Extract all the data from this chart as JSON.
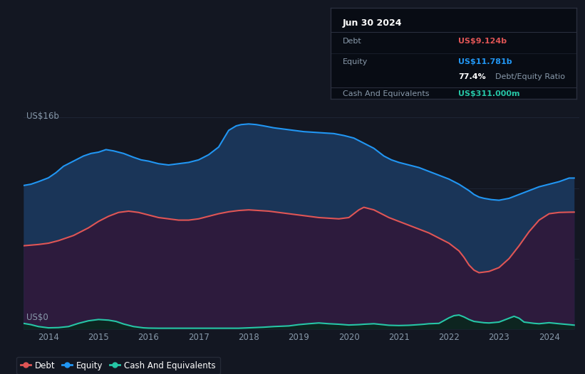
{
  "background_color": "#131722",
  "plot_bg_color": "#131722",
  "y_label_top": "US$16b",
  "y_label_bottom": "US$0",
  "x_ticks": [
    "2014",
    "2015",
    "2016",
    "2017",
    "2018",
    "2019",
    "2020",
    "2021",
    "2022",
    "2023",
    "2024"
  ],
  "debt_color": "#e05555",
  "equity_color": "#2196f3",
  "cash_color": "#26c6a6",
  "fill_equity_color": "#1a3558",
  "fill_debt_color": "#2d1b3d",
  "fill_cash_color": "#0d2520",
  "tooltip_bg": "#080c14",
  "tooltip_border": "#2a2f3d",
  "grid_color": "#1e2535",
  "legend_border": "#2a2f3d",
  "tooltip": {
    "title": "Jun 30 2024",
    "debt_label": "Debt",
    "debt_value": "US$9.124b",
    "equity_label": "Equity",
    "equity_value": "US$11.781b",
    "ratio_value": "77.4%",
    "ratio_label": "Debt/Equity Ratio",
    "cash_label": "Cash And Equivalents",
    "cash_value": "US$311.000m"
  },
  "equity_years": [
    2013.5,
    2013.65,
    2013.8,
    2014.0,
    2014.15,
    2014.3,
    2014.5,
    2014.7,
    2014.85,
    2015.0,
    2015.15,
    2015.3,
    2015.5,
    2015.7,
    2015.85,
    2016.0,
    2016.2,
    2016.4,
    2016.6,
    2016.8,
    2017.0,
    2017.2,
    2017.4,
    2017.6,
    2017.75,
    2017.85,
    2018.0,
    2018.15,
    2018.3,
    2018.5,
    2018.7,
    2018.9,
    2019.1,
    2019.3,
    2019.5,
    2019.7,
    2019.9,
    2020.1,
    2020.3,
    2020.5,
    2020.6,
    2020.7,
    2020.85,
    2021.0,
    2021.2,
    2021.4,
    2021.6,
    2021.8,
    2022.0,
    2022.2,
    2022.4,
    2022.5,
    2022.6,
    2022.7,
    2022.85,
    2023.0,
    2023.2,
    2023.4,
    2023.6,
    2023.8,
    2024.0,
    2024.2,
    2024.4,
    2024.5
  ],
  "equity_values": [
    11.2,
    11.3,
    11.5,
    11.8,
    12.2,
    12.7,
    13.1,
    13.5,
    13.7,
    13.8,
    14.0,
    13.9,
    13.7,
    13.4,
    13.2,
    13.1,
    12.9,
    12.8,
    12.9,
    13.0,
    13.2,
    13.6,
    14.2,
    15.5,
    15.85,
    15.95,
    16.0,
    15.95,
    15.85,
    15.7,
    15.6,
    15.5,
    15.4,
    15.35,
    15.3,
    15.25,
    15.1,
    14.9,
    14.5,
    14.1,
    13.8,
    13.5,
    13.2,
    13.0,
    12.8,
    12.6,
    12.3,
    12.0,
    11.7,
    11.3,
    10.8,
    10.5,
    10.3,
    10.2,
    10.1,
    10.05,
    10.2,
    10.5,
    10.8,
    11.1,
    11.3,
    11.5,
    11.78,
    11.781
  ],
  "debt_years": [
    2013.5,
    2013.65,
    2013.8,
    2014.0,
    2014.2,
    2014.5,
    2014.8,
    2015.0,
    2015.2,
    2015.4,
    2015.6,
    2015.8,
    2016.0,
    2016.2,
    2016.4,
    2016.6,
    2016.8,
    2017.0,
    2017.2,
    2017.4,
    2017.6,
    2017.8,
    2018.0,
    2018.2,
    2018.4,
    2018.6,
    2018.8,
    2019.0,
    2019.2,
    2019.4,
    2019.6,
    2019.8,
    2020.0,
    2020.1,
    2020.2,
    2020.3,
    2020.4,
    2020.5,
    2020.6,
    2020.7,
    2020.8,
    2021.0,
    2021.2,
    2021.4,
    2021.6,
    2021.8,
    2022.0,
    2022.1,
    2022.2,
    2022.3,
    2022.4,
    2022.5,
    2022.6,
    2022.8,
    2023.0,
    2023.2,
    2023.4,
    2023.6,
    2023.8,
    2024.0,
    2024.2,
    2024.4,
    2024.5
  ],
  "debt_values": [
    6.5,
    6.55,
    6.6,
    6.7,
    6.9,
    7.3,
    7.9,
    8.4,
    8.8,
    9.1,
    9.2,
    9.1,
    8.9,
    8.7,
    8.6,
    8.5,
    8.5,
    8.6,
    8.8,
    9.0,
    9.15,
    9.25,
    9.3,
    9.25,
    9.2,
    9.1,
    9.0,
    8.9,
    8.8,
    8.7,
    8.65,
    8.6,
    8.7,
    9.0,
    9.3,
    9.5,
    9.4,
    9.3,
    9.1,
    8.9,
    8.7,
    8.4,
    8.1,
    7.8,
    7.5,
    7.1,
    6.7,
    6.4,
    6.1,
    5.6,
    5.0,
    4.6,
    4.4,
    4.5,
    4.8,
    5.5,
    6.5,
    7.6,
    8.5,
    9.0,
    9.1,
    9.12,
    9.124
  ],
  "cash_years": [
    2013.5,
    2013.65,
    2013.8,
    2014.0,
    2014.2,
    2014.4,
    2014.6,
    2014.8,
    2015.0,
    2015.2,
    2015.35,
    2015.5,
    2015.7,
    2015.9,
    2016.0,
    2016.2,
    2016.5,
    2016.8,
    2017.0,
    2017.3,
    2017.5,
    2017.8,
    2018.0,
    2018.3,
    2018.5,
    2018.8,
    2019.0,
    2019.2,
    2019.4,
    2019.5,
    2019.6,
    2019.8,
    2020.0,
    2020.2,
    2020.3,
    2020.4,
    2020.5,
    2020.6,
    2020.8,
    2021.0,
    2021.2,
    2021.4,
    2021.5,
    2021.6,
    2021.8,
    2022.0,
    2022.1,
    2022.2,
    2022.3,
    2022.4,
    2022.5,
    2022.6,
    2022.7,
    2022.8,
    2023.0,
    2023.2,
    2023.3,
    2023.4,
    2023.5,
    2023.6,
    2023.7,
    2023.8,
    2024.0,
    2024.2,
    2024.4,
    2024.5
  ],
  "cash_values": [
    0.45,
    0.35,
    0.2,
    0.1,
    0.12,
    0.2,
    0.45,
    0.65,
    0.75,
    0.7,
    0.6,
    0.4,
    0.2,
    0.1,
    0.08,
    0.07,
    0.07,
    0.07,
    0.07,
    0.07,
    0.07,
    0.07,
    0.1,
    0.15,
    0.2,
    0.25,
    0.35,
    0.42,
    0.48,
    0.45,
    0.42,
    0.38,
    0.32,
    0.35,
    0.38,
    0.4,
    0.42,
    0.38,
    0.3,
    0.28,
    0.3,
    0.35,
    0.38,
    0.42,
    0.45,
    0.88,
    1.05,
    1.1,
    0.95,
    0.75,
    0.6,
    0.55,
    0.5,
    0.48,
    0.55,
    0.85,
    1.0,
    0.85,
    0.55,
    0.5,
    0.45,
    0.42,
    0.5,
    0.42,
    0.35,
    0.311
  ]
}
